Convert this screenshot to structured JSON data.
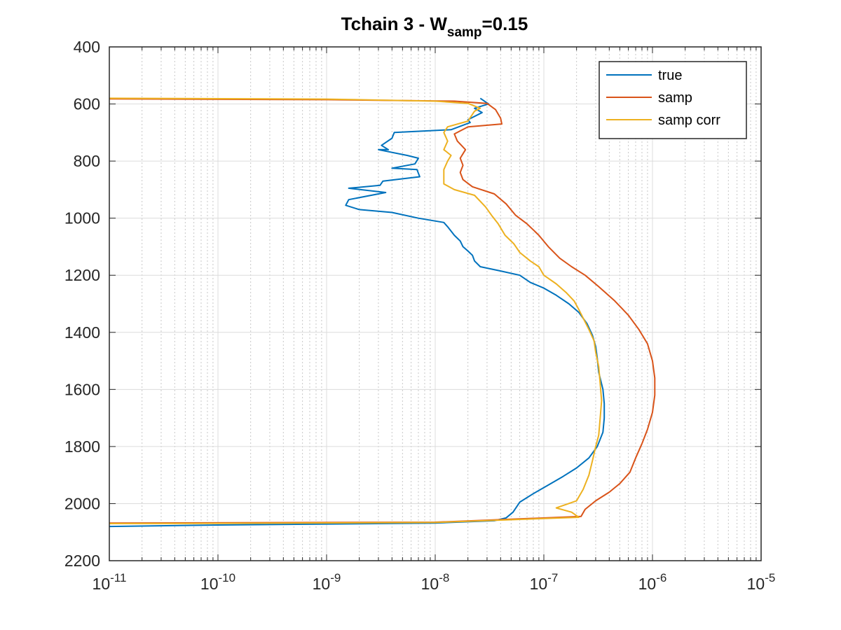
{
  "chart_data": {
    "type": "line",
    "title": {
      "prefix": "Tchain 3 - W",
      "subscript": "samp",
      "suffix": "=0.15"
    },
    "xlabel": "",
    "ylabel": "",
    "x_scale": "log",
    "xlim": [
      1e-11,
      1e-05
    ],
    "x_ticks": [
      {
        "base": "10",
        "exp": "-11",
        "value": 1e-11
      },
      {
        "base": "10",
        "exp": "-10",
        "value": 1e-10
      },
      {
        "base": "10",
        "exp": "-9",
        "value": 1e-09
      },
      {
        "base": "10",
        "exp": "-8",
        "value": 1e-08
      },
      {
        "base": "10",
        "exp": "-7",
        "value": 1e-07
      },
      {
        "base": "10",
        "exp": "-6",
        "value": 1e-06
      },
      {
        "base": "10",
        "exp": "-5",
        "value": 1e-05
      }
    ],
    "y_reversed": true,
    "ylim": [
      400,
      2200
    ],
    "y_ticks": [
      "400",
      "600",
      "800",
      "1000",
      "1200",
      "1400",
      "1600",
      "1800",
      "2000",
      "2200"
    ],
    "grid": true,
    "legend_position": "top-right",
    "series": [
      {
        "name": "true",
        "color": "#0072BD",
        "points": [
          [
            2.6e-08,
            580
          ],
          [
            3.1e-08,
            600
          ],
          [
            2.8e-08,
            605
          ],
          [
            2.3e-08,
            615
          ],
          [
            2.7e-08,
            630
          ],
          [
            2e-08,
            655
          ],
          [
            2.1e-08,
            665
          ],
          [
            1.4e-08,
            690
          ],
          [
            4.2e-09,
            700
          ],
          [
            4e-09,
            720
          ],
          [
            3.2e-09,
            745
          ],
          [
            3.7e-09,
            760
          ],
          [
            3e-09,
            760
          ],
          [
            5.5e-09,
            780
          ],
          [
            7e-09,
            790
          ],
          [
            6.5e-09,
            810
          ],
          [
            4e-09,
            825
          ],
          [
            6.8e-09,
            830
          ],
          [
            7.2e-09,
            855
          ],
          [
            3.3e-09,
            870
          ],
          [
            3.1e-09,
            885
          ],
          [
            1.6e-09,
            895
          ],
          [
            3.5e-09,
            910
          ],
          [
            1.6e-09,
            935
          ],
          [
            1.5e-09,
            955
          ],
          [
            2e-09,
            970
          ],
          [
            4e-09,
            980
          ],
          [
            7e-09,
            1000
          ],
          [
            1.2e-08,
            1015
          ],
          [
            1.3e-08,
            1030
          ],
          [
            1.5e-08,
            1060
          ],
          [
            1.7e-08,
            1080
          ],
          [
            1.8e-08,
            1100
          ],
          [
            2e-08,
            1115
          ],
          [
            2.2e-08,
            1130
          ],
          [
            2.3e-08,
            1150
          ],
          [
            2.6e-08,
            1170
          ],
          [
            4e-08,
            1185
          ],
          [
            6e-08,
            1200
          ],
          [
            7.5e-08,
            1225
          ],
          [
            1e-07,
            1245
          ],
          [
            1.3e-07,
            1270
          ],
          [
            1.7e-07,
            1300
          ],
          [
            2.1e-07,
            1330
          ],
          [
            2.5e-07,
            1370
          ],
          [
            2.8e-07,
            1410
          ],
          [
            3e-07,
            1450
          ],
          [
            3.1e-07,
            1490
          ],
          [
            3.2e-07,
            1540
          ],
          [
            3.5e-07,
            1600
          ],
          [
            3.6e-07,
            1650
          ],
          [
            3.6e-07,
            1700
          ],
          [
            3.5e-07,
            1750
          ],
          [
            3.1e-07,
            1800
          ],
          [
            2.6e-07,
            1840
          ],
          [
            2e-07,
            1875
          ],
          [
            1.5e-07,
            1905
          ],
          [
            1.1e-07,
            1935
          ],
          [
            8e-08,
            1965
          ],
          [
            6e-08,
            1995
          ],
          [
            5.2e-08,
            2030
          ],
          [
            4.5e-08,
            2050
          ],
          [
            3.5e-08,
            2060
          ],
          [
            1e-08,
            2068
          ],
          [
            1e-10,
            2075
          ],
          [
            1e-11,
            2080
          ]
        ]
      },
      {
        "name": "samp",
        "color": "#D95319",
        "points": [
          [
            1e-11,
            582
          ],
          [
            1e-09,
            585
          ],
          [
            1.5e-08,
            590
          ],
          [
            3e-08,
            598
          ],
          [
            3.6e-08,
            620
          ],
          [
            4e-08,
            650
          ],
          [
            4.1e-08,
            670
          ],
          [
            2e-08,
            680
          ],
          [
            1.5e-08,
            705
          ],
          [
            1.6e-08,
            730
          ],
          [
            1.9e-08,
            760
          ],
          [
            1.7e-08,
            790
          ],
          [
            1.8e-08,
            815
          ],
          [
            1.7e-08,
            840
          ],
          [
            1.8e-08,
            865
          ],
          [
            2.2e-08,
            890
          ],
          [
            3.5e-08,
            915
          ],
          [
            4.5e-08,
            950
          ],
          [
            5.5e-08,
            990
          ],
          [
            7e-08,
            1020
          ],
          [
            9e-08,
            1060
          ],
          [
            1.1e-07,
            1100
          ],
          [
            1.4e-07,
            1140
          ],
          [
            1.8e-07,
            1170
          ],
          [
            2.4e-07,
            1200
          ],
          [
            3.2e-07,
            1240
          ],
          [
            4.5e-07,
            1290
          ],
          [
            6e-07,
            1340
          ],
          [
            7.5e-07,
            1390
          ],
          [
            9e-07,
            1440
          ],
          [
            1e-06,
            1500
          ],
          [
            1.05e-06,
            1560
          ],
          [
            1.05e-06,
            1620
          ],
          [
            1e-06,
            1680
          ],
          [
            9e-07,
            1740
          ],
          [
            8e-07,
            1790
          ],
          [
            7e-07,
            1840
          ],
          [
            6.2e-07,
            1890
          ],
          [
            5e-07,
            1930
          ],
          [
            4e-07,
            1960
          ],
          [
            3e-07,
            1990
          ],
          [
            2.4e-07,
            2020
          ],
          [
            2.2e-07,
            2045
          ],
          [
            1e-08,
            2065
          ],
          [
            1e-11,
            2068
          ]
        ]
      },
      {
        "name": "samp corr",
        "color": "#EDB120",
        "points": [
          [
            1e-11,
            580
          ],
          [
            1e-09,
            583
          ],
          [
            1e-08,
            590
          ],
          [
            2e-08,
            598
          ],
          [
            2.6e-08,
            615
          ],
          [
            2.3e-08,
            625
          ],
          [
            2e-08,
            660
          ],
          [
            1.3e-08,
            680
          ],
          [
            1.2e-08,
            700
          ],
          [
            1.3e-08,
            730
          ],
          [
            1.2e-08,
            760
          ],
          [
            1.4e-08,
            780
          ],
          [
            1.3e-08,
            800
          ],
          [
            1.2e-08,
            830
          ],
          [
            1.2e-08,
            860
          ],
          [
            1.2e-08,
            880
          ],
          [
            1.5e-08,
            900
          ],
          [
            2.3e-08,
            920
          ],
          [
            2.9e-08,
            960
          ],
          [
            3.3e-08,
            990
          ],
          [
            3.8e-08,
            1020
          ],
          [
            4.4e-08,
            1060
          ],
          [
            5.3e-08,
            1090
          ],
          [
            6e-08,
            1120
          ],
          [
            7.5e-08,
            1150
          ],
          [
            9e-08,
            1170
          ],
          [
            1e-07,
            1200
          ],
          [
            1.3e-07,
            1230
          ],
          [
            1.6e-07,
            1260
          ],
          [
            1.9e-07,
            1290
          ],
          [
            2.1e-07,
            1320
          ],
          [
            2.3e-07,
            1350
          ],
          [
            2.6e-07,
            1390
          ],
          [
            2.9e-07,
            1430
          ],
          [
            3e-07,
            1470
          ],
          [
            3.2e-07,
            1520
          ],
          [
            3.3e-07,
            1580
          ],
          [
            3.4e-07,
            1640
          ],
          [
            3.3e-07,
            1700
          ],
          [
            3.2e-07,
            1760
          ],
          [
            3e-07,
            1800
          ],
          [
            2.8e-07,
            1850
          ],
          [
            2.6e-07,
            1900
          ],
          [
            2.3e-07,
            1950
          ],
          [
            2e-07,
            1990
          ],
          [
            1.3e-07,
            2015
          ],
          [
            1.8e-07,
            2030
          ],
          [
            2.1e-07,
            2048
          ],
          [
            1e-08,
            2066
          ],
          [
            1e-10,
            2069
          ],
          [
            1e-11,
            2070
          ]
        ]
      }
    ]
  }
}
